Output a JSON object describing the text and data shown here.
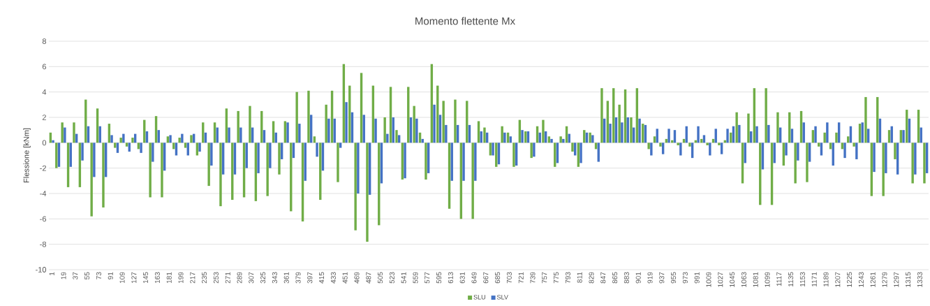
{
  "chart_data": {
    "type": "bar",
    "title": "Momento flettente Mx",
    "ylabel": "Flessione [kNm]",
    "categories": [
      "1",
      null,
      "19",
      null,
      "37",
      null,
      "55",
      null,
      "73",
      null,
      "91",
      null,
      "109",
      null,
      "127",
      null,
      "145",
      null,
      "163",
      null,
      "181",
      null,
      "199",
      null,
      "217",
      null,
      "235",
      null,
      "253",
      null,
      "271",
      null,
      "289",
      null,
      "307",
      null,
      "325",
      null,
      "343",
      null,
      "361",
      null,
      "379",
      null,
      "397",
      null,
      "415",
      null,
      "433",
      null,
      "451",
      null,
      "469",
      null,
      "487",
      null,
      "505",
      null,
      "523",
      null,
      "541",
      null,
      "559",
      null,
      "577",
      null,
      "595",
      null,
      "613",
      null,
      "631",
      null,
      "649",
      null,
      "667",
      null,
      "685",
      null,
      "703",
      null,
      "721",
      null,
      "739",
      null,
      "757",
      null,
      "775",
      null,
      "793",
      null,
      "811",
      null,
      "829",
      null,
      "847",
      null,
      "865",
      null,
      "883",
      null,
      "901",
      null,
      "919",
      null,
      "937",
      null,
      "955",
      null,
      "973",
      null,
      "991",
      null,
      "1009",
      null,
      "1027",
      null,
      "1045",
      null,
      "1063",
      null,
      "1081",
      null,
      "1099",
      null,
      "1117",
      null,
      "1135",
      null,
      "1153",
      null,
      "1171",
      null,
      "1189",
      null,
      "1207",
      null,
      "1225",
      null,
      "1243",
      null,
      "1261",
      null,
      "1279",
      null,
      "1297",
      null,
      "1315",
      null,
      "1333",
      null
    ],
    "series": [
      {
        "name": "SLU",
        "color": "#70ad47",
        "values": [
          0.8,
          -2.0,
          1.6,
          -3.5,
          1.6,
          -3.5,
          3.4,
          -5.8,
          2.7,
          -5.1,
          1.5,
          -0.4,
          0.4,
          -0.3,
          0.4,
          -0.5,
          1.8,
          -4.3,
          2.1,
          -4.3,
          0.5,
          -0.5,
          0.4,
          -0.4,
          0.6,
          -1.0,
          1.6,
          -3.4,
          1.6,
          -5.0,
          2.7,
          -4.5,
          2.5,
          -4.3,
          2.9,
          -4.6,
          2.5,
          -4.2,
          1.7,
          -2.5,
          1.7,
          -5.4,
          4.0,
          -6.2,
          4.1,
          0.5,
          -4.5,
          3.0,
          4.1,
          -3.1,
          6.2,
          4.5,
          -6.9,
          5.5,
          -7.8,
          4.5,
          -6.5,
          2.0,
          4.4,
          1.0,
          -2.9,
          4.4,
          2.9,
          0.8,
          -2.9,
          6.2,
          4.5,
          3.3,
          -5.2,
          3.4,
          -6.0,
          3.3,
          -6.0,
          1.7,
          1.2,
          -1.0,
          -1.9,
          1.3,
          0.8,
          -1.9,
          1.8,
          0.9,
          -1.2,
          1.3,
          1.8,
          0.5,
          -1.9,
          0.5,
          1.3,
          -0.7,
          -1.9,
          1.0,
          0.8,
          -0.5,
          4.3,
          3.3,
          4.3,
          3.0,
          4.2,
          2.0,
          4.3,
          1.5,
          -0.5,
          0.5,
          -0.3,
          0.3,
          0.2,
          -0.2,
          0.3,
          -0.3,
          0.2,
          0.3,
          -0.2,
          0.3,
          -0.2,
          0.2,
          0.8,
          2.4,
          -3.2,
          2.3,
          4.3,
          -4.9,
          4.3,
          -4.9,
          2.4,
          -1.8,
          2.4,
          -3.2,
          2.5,
          -3.1,
          1.0,
          -0.3,
          0.8,
          -0.5,
          0.8,
          -0.5,
          0.5,
          -0.3,
          1.5,
          3.6,
          -4.2,
          3.6,
          -4.2,
          1.0,
          -1.3,
          1.0,
          2.6,
          -3.2,
          2.6,
          -3.2
        ]
      },
      {
        "name": "SLV",
        "color": "#4472c4",
        "values": [
          0.2,
          -1.9,
          1.2,
          -1.9,
          0.7,
          -1.4,
          1.3,
          -2.7,
          1.3,
          -2.7,
          0.6,
          -0.8,
          0.7,
          -0.7,
          0.7,
          -0.8,
          0.9,
          -1.5,
          1.0,
          -2.2,
          0.6,
          -1.0,
          0.7,
          -1.0,
          0.7,
          -0.7,
          0.8,
          -1.8,
          1.2,
          -2.5,
          1.2,
          -2.5,
          1.2,
          -2.0,
          1.2,
          -2.4,
          1.0,
          -2.0,
          0.8,
          -1.3,
          1.6,
          -1.2,
          1.5,
          -3.0,
          2.2,
          -1.1,
          -2.2,
          1.9,
          1.9,
          -0.4,
          3.2,
          2.4,
          -4.0,
          2.2,
          -4.1,
          1.9,
          -3.2,
          0.7,
          2.0,
          0.6,
          -2.8,
          2.0,
          1.9,
          0.3,
          -2.4,
          3.0,
          2.2,
          1.4,
          -3.0,
          1.4,
          -3.0,
          1.4,
          -3.0,
          0.9,
          0.8,
          -1.0,
          -1.7,
          0.8,
          0.5,
          -1.8,
          1.0,
          0.9,
          -1.1,
          0.8,
          0.9,
          0.3,
          -1.6,
          0.3,
          0.7,
          -1.0,
          -1.6,
          0.8,
          0.6,
          -1.5,
          1.9,
          1.5,
          2.0,
          1.6,
          2.0,
          1.2,
          1.9,
          1.4,
          -1.0,
          1.1,
          -0.9,
          1.1,
          1.0,
          -1.0,
          1.3,
          -1.2,
          1.3,
          0.6,
          -1.0,
          1.1,
          -0.9,
          1.1,
          1.3,
          1.4,
          -1.6,
          0.9,
          1.3,
          -2.1,
          1.4,
          -1.6,
          1.2,
          -1.0,
          1.1,
          -1.4,
          1.6,
          -1.5,
          1.3,
          -1.0,
          1.6,
          -1.8,
          1.6,
          -1.2,
          1.3,
          -1.3,
          1.6,
          1.1,
          -2.3,
          1.9,
          -2.4,
          1.3,
          -2.5,
          1.0,
          1.9,
          -2.5,
          1.2,
          -2.4
        ]
      }
    ],
    "ylim": [
      -10,
      8
    ],
    "yticks": [
      -10,
      -8,
      -6,
      -4,
      -2,
      0,
      2,
      4,
      6,
      8
    ],
    "grid": "y",
    "legend": "bottom"
  }
}
